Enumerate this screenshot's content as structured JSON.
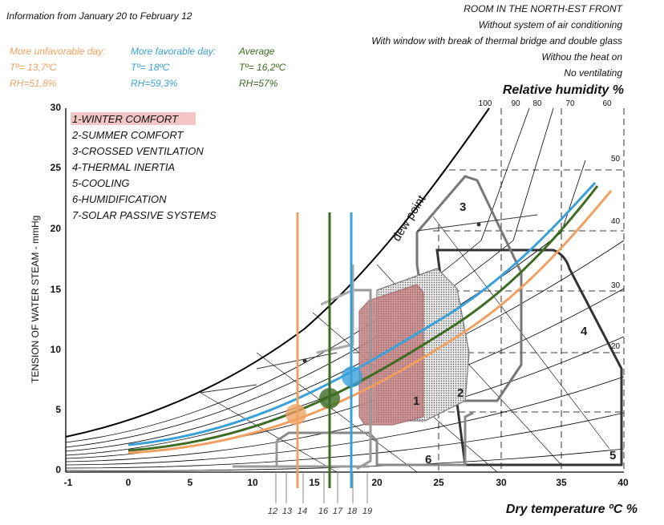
{
  "header": {
    "info": "Information from January 20 to February 12",
    "room_lines": [
      "ROOM IN THE NORTH-EST FRONT",
      "Without system of air conditioning",
      "With window with break of thermal bridge and double glass",
      "Withou the heat on",
      "No ventilating"
    ]
  },
  "legend": {
    "unfavorable": {
      "title": "More unfavorable day:",
      "temp": "Tº= 13,7ºC",
      "rh": "RH=51,8%",
      "color": "#f0a060"
    },
    "favorable": {
      "title": "More favorable day:",
      "temp": "Tº= 18ºC",
      "rh": "RH=59,3%",
      "color": "#3aa0d8"
    },
    "average": {
      "title": "Average",
      "temp": "Tº= 16,2ºC",
      "rh": "RH=57%",
      "color": "#3d6b22"
    }
  },
  "zones_list": [
    "1-WINTER COMFORT",
    "2-SUMMER COMFORT",
    "3-CROSSED VENTILATION",
    "4-THERMAL INERTIA",
    "5-COOLING",
    "6-HUMIDIFICATION",
    "7-SOLAR PASSIVE SYSTEMS"
  ],
  "axes": {
    "x_title": "Dry temperature ºC %",
    "y_title": "TENSION OF WATER STEAM - mmHg",
    "rh_title": "Relative humidity %",
    "x_ticks": [
      "-1",
      "0",
      "5",
      "10",
      "15",
      "20",
      "25",
      "30",
      "35",
      "40"
    ],
    "y_ticks": [
      "0",
      "5",
      "10",
      "15",
      "20",
      "25",
      "30"
    ],
    "rh_ticks": [
      "100",
      "90",
      "80",
      "70",
      "60"
    ],
    "side_ticks": [
      "50",
      "40",
      "30",
      "20"
    ],
    "bottom_ticks": [
      "12",
      "13",
      "14",
      "16",
      "17",
      "18",
      "19"
    ]
  },
  "labels": {
    "dew_point": "dew point",
    "zone_numbers": [
      "1",
      "2",
      "3",
      "4",
      "5",
      "6"
    ]
  },
  "colors": {
    "unfavorable": "#f0a060",
    "favorable": "#3aa0d8",
    "average": "#3d6b22",
    "winter_zone": "#c98b8b",
    "curve": "#000000"
  }
}
